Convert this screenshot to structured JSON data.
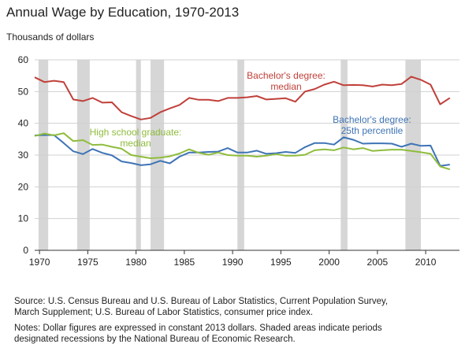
{
  "chart_data": {
    "type": "line",
    "title": "Annual Wage by Education, 1970-2013",
    "ylabel": "Thousands of dollars",
    "xlim": [
      1969.5,
      2013.5
    ],
    "ylim": [
      0,
      60
    ],
    "yticks": [
      0,
      10,
      20,
      30,
      40,
      50,
      60
    ],
    "xticks": [
      1970,
      1975,
      1980,
      1985,
      1990,
      1995,
      2000,
      2005,
      2010
    ],
    "grid": "horizontal",
    "recessions": [
      [
        1969.9,
        1970.9
      ],
      [
        1973.9,
        1975.2
      ],
      [
        1980.0,
        1980.5
      ],
      [
        1981.5,
        1982.9
      ],
      [
        1990.5,
        1991.2
      ],
      [
        2001.2,
        2001.9
      ],
      [
        2007.9,
        2009.5
      ]
    ],
    "series": [
      {
        "name": "Bachelor's degree:\nmedian",
        "label_lines": [
          "Bachelor's degree:",
          "median"
        ],
        "color": "#c0403a",
        "x": [
          1969.5,
          1970.5,
          1971.5,
          1972.5,
          1973.5,
          1974.5,
          1975.5,
          1976.5,
          1977.5,
          1978.5,
          1979.5,
          1980.5,
          1981.5,
          1982.5,
          1983.5,
          1984.5,
          1985.5,
          1986.5,
          1987.5,
          1988.5,
          1989.5,
          1990.5,
          1991.5,
          1992.5,
          1993.5,
          1994.5,
          1995.5,
          1996.5,
          1997.5,
          1998.5,
          1999.5,
          2000.5,
          2001.5,
          2002.5,
          2003.5,
          2004.5,
          2005.5,
          2006.5,
          2007.5,
          2008.5,
          2009.5,
          2010.5,
          2011.5,
          2012.5
        ],
        "values": [
          54.5,
          53.0,
          53.4,
          53.0,
          47.5,
          47.0,
          48.0,
          46.5,
          46.6,
          43.5,
          42.3,
          41.2,
          41.7,
          43.5,
          44.7,
          45.8,
          48.0,
          47.4,
          47.4,
          47.0,
          48.0,
          48.0,
          48.2,
          48.6,
          47.5,
          47.7,
          47.9,
          46.8,
          50.0,
          50.8,
          52.2,
          53.1,
          52.0,
          52.1,
          52.0,
          51.6,
          52.2,
          52.0,
          52.4,
          54.7,
          53.7,
          52.2,
          46.0,
          48.0
        ]
      },
      {
        "name": "Bachelor's degree:\n25th percentile",
        "label_lines": [
          "Bachelor's degree:",
          "25th percentile"
        ],
        "color": "#3f74b5",
        "x": [
          1969.5,
          1970.5,
          1971.5,
          1972.5,
          1973.5,
          1974.5,
          1975.5,
          1976.5,
          1977.5,
          1978.5,
          1979.5,
          1980.5,
          1981.5,
          1982.5,
          1983.5,
          1984.5,
          1985.5,
          1986.5,
          1987.5,
          1988.5,
          1989.5,
          1990.5,
          1991.5,
          1992.5,
          1993.5,
          1994.5,
          1995.5,
          1996.5,
          1997.5,
          1998.5,
          1999.5,
          2000.5,
          2001.5,
          2002.5,
          2003.5,
          2004.5,
          2005.5,
          2006.5,
          2007.5,
          2008.5,
          2009.5,
          2010.5,
          2011.5,
          2012.5
        ],
        "values": [
          36.2,
          36.3,
          36.3,
          33.8,
          31.2,
          30.3,
          31.9,
          30.7,
          29.9,
          28.0,
          27.5,
          26.8,
          27.1,
          28.2,
          27.4,
          29.5,
          30.8,
          30.8,
          31.0,
          31.1,
          32.2,
          30.8,
          30.8,
          31.4,
          30.4,
          30.6,
          31.0,
          30.7,
          32.5,
          33.8,
          33.8,
          33.3,
          35.6,
          34.8,
          33.6,
          33.7,
          33.7,
          33.6,
          32.6,
          33.6,
          32.9,
          33.0,
          26.6,
          27.0
        ]
      },
      {
        "name": "High school graduate:\nmedian",
        "label_lines": [
          "High school graduate:",
          "median"
        ],
        "color": "#8fbc3c",
        "x": [
          1969.5,
          1970.5,
          1971.5,
          1972.5,
          1973.5,
          1974.5,
          1975.5,
          1976.5,
          1977.5,
          1978.5,
          1979.5,
          1980.5,
          1981.5,
          1982.5,
          1983.5,
          1984.5,
          1985.5,
          1986.5,
          1987.5,
          1988.5,
          1989.5,
          1990.5,
          1991.5,
          1992.5,
          1993.5,
          1994.5,
          1995.5,
          1996.5,
          1997.5,
          1998.5,
          1999.5,
          2000.5,
          2001.5,
          2002.5,
          2003.5,
          2004.5,
          2005.5,
          2006.5,
          2007.5,
          2008.5,
          2009.5,
          2010.5,
          2011.5,
          2012.5
        ],
        "values": [
          36.0,
          36.8,
          36.2,
          36.9,
          34.4,
          34.7,
          33.2,
          33.3,
          32.6,
          32.0,
          30.0,
          29.5,
          29.0,
          29.2,
          29.6,
          30.5,
          31.8,
          30.7,
          30.1,
          30.8,
          30.0,
          29.8,
          29.8,
          29.5,
          29.8,
          30.3,
          29.8,
          29.8,
          30.1,
          31.5,
          31.8,
          31.5,
          32.4,
          31.8,
          32.2,
          31.3,
          31.5,
          31.7,
          31.7,
          31.3,
          30.9,
          30.4,
          26.4,
          25.5
        ]
      }
    ]
  },
  "notes": {
    "source_line1": "Source: U.S. Census Bureau and U.S. Bureau of Labor Statistics, Current Population Survey,",
    "source_line2": "March Supplement; U.S. Bureau of Labor Statistics, consumer price index.",
    "notes_line1": "Notes: Dollar figures are expressed in constant 2013 dollars. Shaded areas indicate periods",
    "notes_line2": "designated recessions by the National Bureau of Economic Research."
  }
}
